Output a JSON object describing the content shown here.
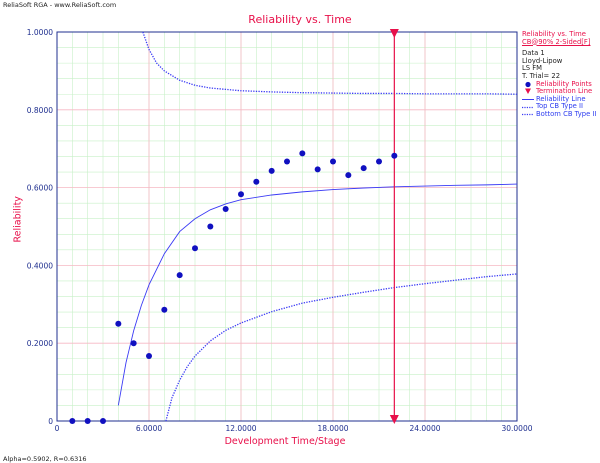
{
  "header_text": "ReliaSoft RGA - www.ReliaSoft.com",
  "footer_text": "Alpha=0.5902, R=0.6316",
  "legend": {
    "title": "Reliability vs. Time",
    "subtitle": "CB@90% 2-Sided[F]",
    "info": [
      "Data 1",
      "Lloyd-Lipow",
      "LS FM",
      "T. Trial= 22"
    ],
    "items": [
      {
        "label": "Reliability Points",
        "symbol": "dot",
        "color": "#1010c0"
      },
      {
        "label": "Termination Line",
        "symbol": "triangle",
        "color": "#e8104a"
      },
      {
        "label": "Reliability Line",
        "symbol": "line",
        "color": "#3b3bf5"
      },
      {
        "label": "Top CB Type II",
        "symbol": "dotted",
        "color": "#3b3bf5"
      },
      {
        "label": "Bottom CB Type II",
        "symbol": "dotted",
        "color": "#3b3bf5"
      }
    ]
  },
  "chart_data": {
    "type": "scatter",
    "title": "Reliability vs. Time",
    "xlabel": "Development Time/Stage",
    "ylabel": "Reliability",
    "xlim": [
      0,
      30
    ],
    "ylim": [
      0,
      1
    ],
    "x_ticks": [
      "0",
      "6.0000",
      "12.0000",
      "18.0000",
      "24.0000",
      "30.0000"
    ],
    "x_tick_values": [
      0,
      6,
      12,
      18,
      24,
      30
    ],
    "y_ticks": [
      "0",
      "0.2000",
      "0.4000",
      "0.6000",
      "0.8000",
      "1.0000"
    ],
    "y_tick_values": [
      0,
      0.2,
      0.4,
      0.6,
      0.8,
      1.0
    ],
    "grid": true,
    "legend_position": "right",
    "termination_x": 22,
    "reliability_points": {
      "x": [
        1,
        2,
        3,
        4,
        5,
        6,
        7,
        8,
        9,
        10,
        11,
        12,
        13,
        14,
        15,
        16,
        17,
        18,
        19,
        20,
        21,
        22
      ],
      "y": [
        0,
        0,
        0,
        0.25,
        0.2,
        0.167,
        0.286,
        0.375,
        0.444,
        0.5,
        0.545,
        0.583,
        0.615,
        0.643,
        0.667,
        0.688,
        0.647,
        0.667,
        0.632,
        0.65,
        0.667,
        0.682
      ]
    },
    "series": [
      {
        "name": "Reliability Line",
        "style": "solid",
        "x": [
          4,
          4.5,
          5,
          5.5,
          6,
          7,
          8,
          9,
          10,
          11,
          12,
          14,
          16,
          18,
          20,
          22,
          24,
          26,
          28,
          30
        ],
        "y": [
          0.04,
          0.15,
          0.232,
          0.297,
          0.35,
          0.43,
          0.487,
          0.52,
          0.543,
          0.558,
          0.569,
          0.581,
          0.589,
          0.595,
          0.599,
          0.602,
          0.604,
          0.606,
          0.607,
          0.609
        ]
      },
      {
        "name": "Top CB Type II",
        "style": "dotted",
        "x": [
          5.6,
          6,
          6.5,
          7,
          8,
          9,
          10,
          12,
          14,
          16,
          18,
          20,
          22,
          24,
          26,
          28,
          30
        ],
        "y": [
          1.0,
          0.955,
          0.92,
          0.9,
          0.876,
          0.863,
          0.856,
          0.849,
          0.846,
          0.844,
          0.843,
          0.842,
          0.842,
          0.841,
          0.841,
          0.841,
          0.84
        ]
      },
      {
        "name": "Bottom CB Type II",
        "style": "dotted",
        "x": [
          7.1,
          7.5,
          8,
          8.5,
          9,
          10,
          11,
          12,
          14,
          16,
          18,
          20,
          22,
          24,
          26,
          28,
          30
        ],
        "y": [
          0.0,
          0.06,
          0.105,
          0.14,
          0.167,
          0.206,
          0.233,
          0.252,
          0.281,
          0.303,
          0.318,
          0.331,
          0.343,
          0.353,
          0.362,
          0.371,
          0.378
        ]
      }
    ]
  }
}
